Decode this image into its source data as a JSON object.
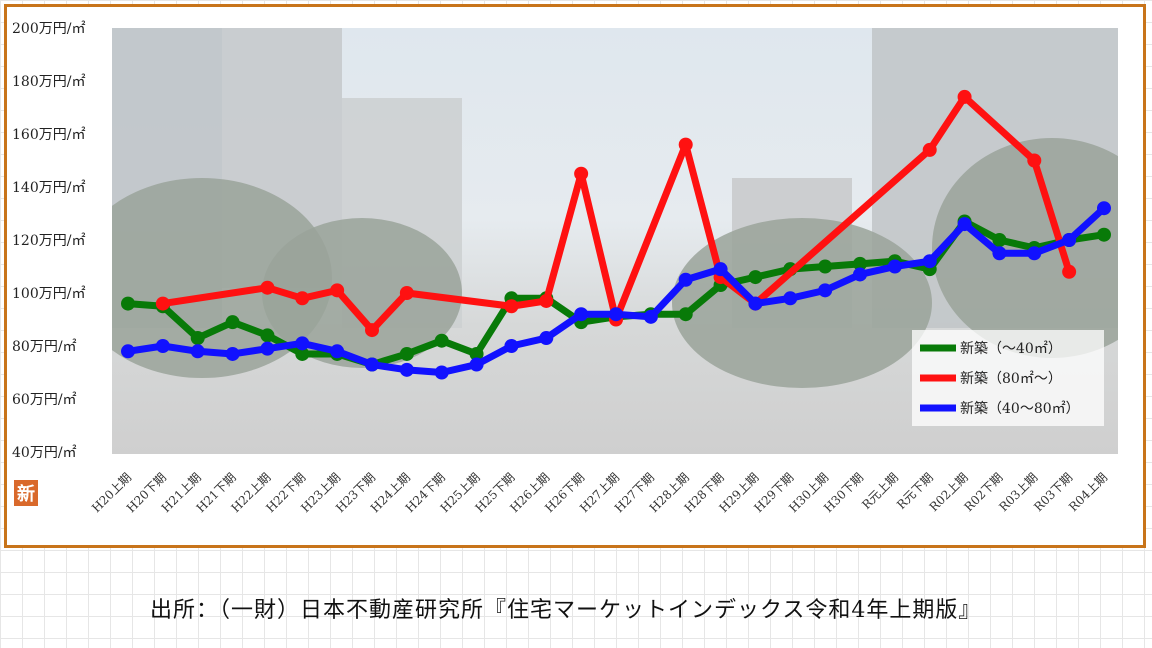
{
  "badge": "新",
  "source": "出所：（一財）日本不動産研究所『住宅マーケットインデックス令和4年上期版』",
  "colors": {
    "green": "#087a08",
    "red": "#ff1111",
    "blue": "#1111ff",
    "frame": "#c8741a"
  },
  "chart_data": {
    "type": "line",
    "title": "",
    "xlabel": "",
    "ylabel": "",
    "ylim": [
      40,
      200
    ],
    "yticks": [
      {
        "value": 200,
        "label": "200万円/㎡"
      },
      {
        "value": 180,
        "label": "180万円/㎡"
      },
      {
        "value": 160,
        "label": "160万円/㎡"
      },
      {
        "value": 140,
        "label": "140万円/㎡"
      },
      {
        "value": 120,
        "label": "120万円/㎡"
      },
      {
        "value": 100,
        "label": "100万円/㎡"
      },
      {
        "value": 80,
        "label": "80万円/㎡"
      },
      {
        "value": 60,
        "label": "60万円/㎡"
      },
      {
        "value": 40,
        "label": "40万円/㎡"
      }
    ],
    "categories": [
      "H20上期",
      "H20下期",
      "H21上期",
      "H21下期",
      "H22上期",
      "H22下期",
      "H23上期",
      "H23下期",
      "H24上期",
      "H24下期",
      "H25上期",
      "H25下期",
      "H26上期",
      "H26下期",
      "H27上期",
      "H27下期",
      "H28上期",
      "H28下期",
      "H29上期",
      "H29下期",
      "H30上期",
      "H30下期",
      "R元上期",
      "R元下期",
      "R02上期",
      "R02下期",
      "R03上期",
      "R03下期",
      "R04上期"
    ],
    "legend_position": "right",
    "series": [
      {
        "name": "新築（～40㎡）",
        "color": "#087a08",
        "values": [
          96,
          95,
          83,
          89,
          84,
          77,
          77,
          73,
          77,
          82,
          77,
          98,
          98,
          89,
          91,
          92,
          92,
          103,
          106,
          109,
          110,
          111,
          112,
          109,
          127,
          120,
          117,
          120,
          122
        ]
      },
      {
        "name": "新築（80㎡～）",
        "color": "#ff1111",
        "values": [
          null,
          96,
          null,
          null,
          102,
          98,
          101,
          86,
          100,
          null,
          null,
          95,
          97,
          145,
          90,
          null,
          156,
          106,
          96,
          null,
          null,
          null,
          null,
          154,
          174,
          null,
          150,
          108,
          null
        ]
      },
      {
        "name": "新築（40～80㎡）",
        "color": "#1111ff",
        "values": [
          78,
          80,
          78,
          77,
          79,
          81,
          78,
          73,
          71,
          70,
          73,
          80,
          83,
          92,
          92,
          91,
          105,
          109,
          96,
          98,
          101,
          107,
          110,
          112,
          126,
          115,
          115,
          120,
          132
        ]
      }
    ]
  }
}
